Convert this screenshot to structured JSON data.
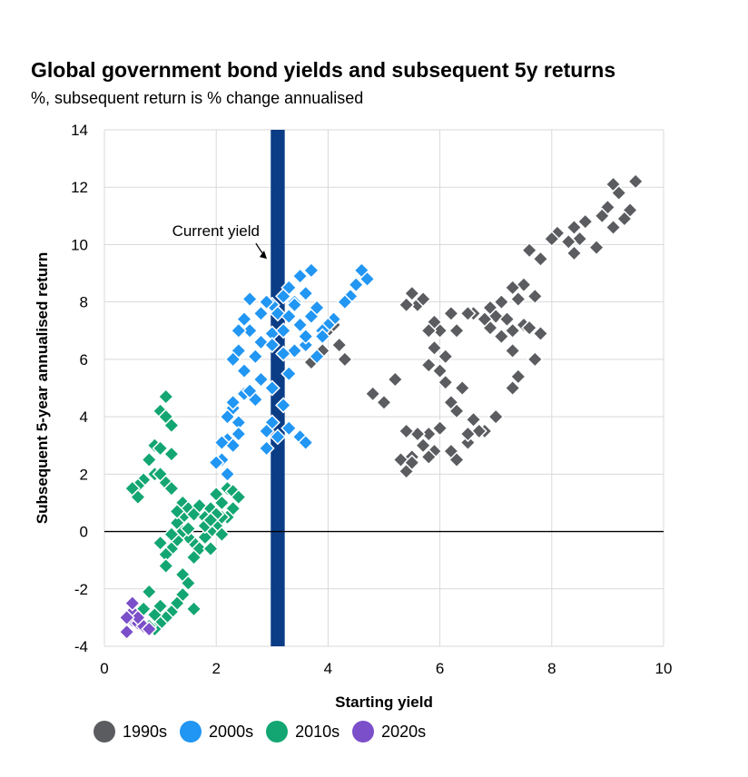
{
  "header": {
    "title": "Global government bond yields and subsequent 5y returns",
    "subtitle": "%, subsequent return is % change annualised"
  },
  "colors": {
    "1990s": "#5a5c60",
    "2000s": "#2196f3",
    "2010s": "#13a672",
    "2020s": "#7b4fc9",
    "current_yield_bar": "#0b3d86",
    "grid": "#d9d9d9"
  },
  "chart_data": {
    "type": "scatter",
    "xlabel": "Starting yield",
    "ylabel": "Subsequent 5-year annualised return",
    "xlim": [
      0,
      10
    ],
    "ylim": [
      -4,
      14
    ],
    "xticks": [
      0,
      2,
      4,
      6,
      8,
      10
    ],
    "yticks": [
      -4,
      -2,
      0,
      2,
      4,
      6,
      8,
      10,
      12,
      14
    ],
    "grid": true,
    "legend_position": "bottom",
    "annotations": [
      {
        "text": "Current yield",
        "x": 3.1,
        "band_width": 0.25
      }
    ],
    "series": [
      {
        "name": "1990s",
        "color": "#5a5c60",
        "points": [
          [
            9.5,
            12.2
          ],
          [
            9.1,
            12.1
          ],
          [
            9.2,
            11.8
          ],
          [
            9.4,
            11.2
          ],
          [
            9.0,
            11.3
          ],
          [
            8.9,
            11.0
          ],
          [
            9.3,
            10.9
          ],
          [
            9.1,
            10.6
          ],
          [
            8.6,
            10.8
          ],
          [
            8.4,
            10.6
          ],
          [
            8.5,
            10.2
          ],
          [
            8.3,
            10.1
          ],
          [
            8.1,
            10.4
          ],
          [
            8.8,
            9.9
          ],
          [
            8.4,
            9.7
          ],
          [
            8.0,
            10.2
          ],
          [
            7.6,
            9.8
          ],
          [
            7.8,
            9.5
          ],
          [
            7.5,
            8.6
          ],
          [
            7.3,
            8.5
          ],
          [
            7.7,
            8.2
          ],
          [
            7.4,
            8.1
          ],
          [
            7.1,
            8.0
          ],
          [
            6.9,
            7.8
          ],
          [
            6.6,
            7.6
          ],
          [
            6.5,
            7.6
          ],
          [
            6.2,
            7.6
          ],
          [
            7.0,
            7.5
          ],
          [
            7.2,
            7.4
          ],
          [
            7.5,
            7.2
          ],
          [
            7.6,
            7.1
          ],
          [
            7.8,
            6.9
          ],
          [
            7.3,
            7.0
          ],
          [
            6.9,
            7.1
          ],
          [
            6.8,
            7.4
          ],
          [
            6.3,
            7.0
          ],
          [
            6.0,
            7.0
          ],
          [
            5.9,
            7.3
          ],
          [
            5.6,
            7.9
          ],
          [
            5.5,
            8.3
          ],
          [
            5.7,
            8.1
          ],
          [
            5.4,
            7.9
          ],
          [
            5.8,
            7.0
          ],
          [
            5.9,
            6.4
          ],
          [
            6.1,
            6.1
          ],
          [
            5.8,
            5.8
          ],
          [
            6.0,
            5.6
          ],
          [
            6.1,
            5.2
          ],
          [
            7.1,
            6.8
          ],
          [
            7.3,
            6.3
          ],
          [
            7.7,
            6.0
          ],
          [
            7.4,
            5.4
          ],
          [
            7.3,
            5.0
          ],
          [
            7.0,
            4.0
          ],
          [
            6.8,
            3.5
          ],
          [
            6.6,
            3.9
          ],
          [
            6.4,
            5.0
          ],
          [
            6.2,
            4.5
          ],
          [
            6.3,
            4.2
          ],
          [
            6.0,
            3.6
          ],
          [
            5.8,
            3.4
          ],
          [
            5.6,
            3.4
          ],
          [
            5.4,
            3.5
          ],
          [
            5.7,
            3.0
          ],
          [
            5.9,
            2.8
          ],
          [
            6.2,
            2.8
          ],
          [
            6.5,
            3.1
          ],
          [
            6.7,
            3.5
          ],
          [
            6.3,
            2.5
          ],
          [
            6.5,
            3.4
          ],
          [
            5.8,
            2.6
          ],
          [
            5.5,
            2.6
          ],
          [
            5.3,
            2.5
          ],
          [
            5.4,
            2.1
          ],
          [
            5.5,
            2.4
          ],
          [
            5.2,
            5.3
          ],
          [
            5.0,
            4.5
          ],
          [
            4.8,
            4.8
          ],
          [
            4.0,
            7.0
          ],
          [
            4.1,
            7.2
          ],
          [
            3.9,
            6.3
          ],
          [
            4.2,
            6.5
          ],
          [
            4.3,
            6.0
          ],
          [
            3.7,
            5.9
          ],
          [
            4.1,
            7.4
          ]
        ]
      },
      {
        "name": "2000s",
        "color": "#2196f3",
        "points": [
          [
            4.6,
            9.1
          ],
          [
            4.7,
            8.8
          ],
          [
            4.5,
            8.6
          ],
          [
            4.4,
            8.2
          ],
          [
            4.3,
            8.0
          ],
          [
            4.1,
            7.4
          ],
          [
            4.0,
            7.2
          ],
          [
            3.9,
            7.0
          ],
          [
            3.7,
            9.1
          ],
          [
            3.5,
            8.9
          ],
          [
            3.3,
            8.5
          ],
          [
            3.6,
            8.3
          ],
          [
            3.4,
            8.0
          ],
          [
            3.2,
            8.2
          ],
          [
            3.0,
            7.9
          ],
          [
            2.9,
            8.0
          ],
          [
            3.1,
            7.6
          ],
          [
            3.3,
            7.5
          ],
          [
            3.5,
            7.2
          ],
          [
            3.7,
            7.5
          ],
          [
            3.8,
            7.8
          ],
          [
            3.9,
            6.8
          ],
          [
            3.6,
            6.5
          ],
          [
            3.4,
            6.3
          ],
          [
            3.2,
            6.2
          ],
          [
            3.0,
            6.9
          ],
          [
            2.8,
            6.6
          ],
          [
            2.6,
            7.0
          ],
          [
            2.5,
            7.4
          ],
          [
            2.4,
            7.0
          ],
          [
            2.6,
            8.1
          ],
          [
            2.4,
            6.3
          ],
          [
            2.3,
            6.0
          ],
          [
            2.7,
            6.1
          ],
          [
            2.5,
            5.6
          ],
          [
            2.8,
            5.3
          ],
          [
            3.0,
            5.0
          ],
          [
            2.7,
            4.6
          ],
          [
            2.5,
            4.8
          ],
          [
            2.3,
            4.3
          ],
          [
            2.2,
            4.0
          ],
          [
            2.4,
            3.8
          ],
          [
            2.2,
            3.2
          ],
          [
            2.3,
            3.0
          ],
          [
            2.1,
            2.5
          ],
          [
            2.0,
            2.4
          ],
          [
            2.2,
            2.0
          ],
          [
            3.3,
            5.5
          ],
          [
            3.2,
            4.4
          ],
          [
            3.0,
            3.8
          ],
          [
            2.9,
            3.5
          ],
          [
            3.1,
            3.3
          ],
          [
            2.9,
            2.9
          ],
          [
            3.3,
            3.6
          ],
          [
            3.5,
            3.3
          ],
          [
            3.6,
            3.1
          ],
          [
            2.4,
            3.4
          ],
          [
            2.6,
            4.9
          ],
          [
            2.8,
            7.6
          ],
          [
            3.2,
            7.0
          ],
          [
            3.6,
            6.8
          ],
          [
            3.0,
            6.5
          ],
          [
            3.4,
            7.9
          ],
          [
            3.8,
            6.1
          ],
          [
            2.3,
            4.5
          ],
          [
            2.1,
            3.1
          ]
        ]
      },
      {
        "name": "2010s",
        "color": "#13a672",
        "points": [
          [
            1.1,
            4.7
          ],
          [
            1.0,
            4.2
          ],
          [
            1.1,
            4.0
          ],
          [
            1.2,
            3.7
          ],
          [
            0.9,
            3.0
          ],
          [
            1.0,
            2.9
          ],
          [
            1.2,
            2.7
          ],
          [
            0.8,
            2.5
          ],
          [
            0.9,
            2.0
          ],
          [
            1.0,
            2.0
          ],
          [
            0.7,
            1.8
          ],
          [
            0.6,
            1.6
          ],
          [
            0.5,
            1.5
          ],
          [
            0.6,
            1.2
          ],
          [
            1.1,
            1.7
          ],
          [
            1.2,
            1.5
          ],
          [
            1.4,
            1.0
          ],
          [
            1.5,
            0.8
          ],
          [
            1.4,
            0.5
          ],
          [
            1.3,
            0.3
          ],
          [
            1.6,
            0.6
          ],
          [
            1.7,
            0.9
          ],
          [
            1.8,
            0.5
          ],
          [
            1.9,
            0.8
          ],
          [
            2.0,
            1.3
          ],
          [
            2.1,
            1.0
          ],
          [
            2.2,
            1.5
          ],
          [
            2.3,
            1.4
          ],
          [
            2.4,
            1.2
          ],
          [
            2.3,
            0.8
          ],
          [
            2.2,
            0.5
          ],
          [
            2.0,
            0.2
          ],
          [
            1.9,
            0.0
          ],
          [
            1.8,
            -0.2
          ],
          [
            1.6,
            -0.4
          ],
          [
            1.5,
            -0.2
          ],
          [
            1.4,
            0.0
          ],
          [
            1.3,
            -0.3
          ],
          [
            1.2,
            -0.6
          ],
          [
            1.1,
            -0.8
          ],
          [
            1.0,
            -0.4
          ],
          [
            1.1,
            -1.2
          ],
          [
            1.4,
            -1.5
          ],
          [
            1.5,
            -1.8
          ],
          [
            1.4,
            -2.2
          ],
          [
            1.3,
            -2.5
          ],
          [
            1.2,
            -2.8
          ],
          [
            1.1,
            -3.0
          ],
          [
            1.0,
            -3.2
          ],
          [
            0.9,
            -3.4
          ],
          [
            0.8,
            -3.3
          ],
          [
            0.9,
            -2.9
          ],
          [
            0.7,
            -2.7
          ],
          [
            0.8,
            -2.1
          ],
          [
            1.0,
            -2.6
          ],
          [
            1.6,
            -2.7
          ],
          [
            1.8,
            0.2
          ],
          [
            1.7,
            -0.6
          ],
          [
            1.6,
            -0.9
          ],
          [
            2.1,
            0.5
          ],
          [
            1.9,
            -0.6
          ],
          [
            2.0,
            0.6
          ],
          [
            2.1,
            -0.1
          ],
          [
            1.9,
            0.4
          ],
          [
            1.5,
            0.1
          ],
          [
            1.3,
            0.7
          ],
          [
            1.2,
            -0.1
          ]
        ]
      },
      {
        "name": "2020s",
        "color": "#7b4fc9",
        "points": [
          [
            0.4,
            -3.5
          ],
          [
            0.5,
            -3.1
          ],
          [
            0.6,
            -3.2
          ],
          [
            0.7,
            -3.3
          ],
          [
            0.5,
            -2.8
          ],
          [
            0.6,
            -3.0
          ],
          [
            0.5,
            -2.5
          ],
          [
            0.4,
            -3.0
          ],
          [
            0.8,
            -3.4
          ]
        ]
      }
    ]
  }
}
